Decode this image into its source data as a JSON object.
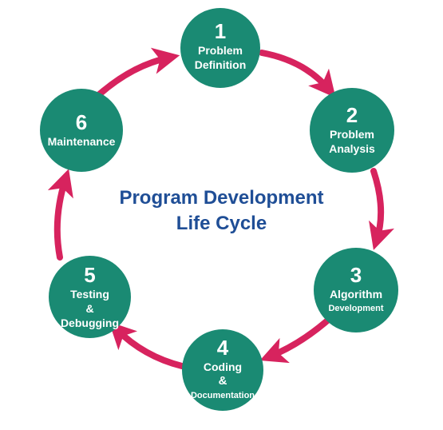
{
  "diagram": {
    "title_line1": "Program Development",
    "title_line2": "Life Cycle",
    "colors": {
      "node": "#1a8a73",
      "arrow": "#d7235e",
      "title": "#1f4e96"
    },
    "steps": [
      {
        "number": "1",
        "line1": "Problem",
        "line2": "Definition",
        "line3": ""
      },
      {
        "number": "2",
        "line1": "Problem",
        "line2": "Analysis",
        "line3": ""
      },
      {
        "number": "3",
        "line1": "Algorithm",
        "line2": "Development",
        "line3": ""
      },
      {
        "number": "4",
        "line1": "Coding",
        "line2": "&",
        "line3": "Documentation"
      },
      {
        "number": "5",
        "line1": "Testing",
        "line2": "&",
        "line3": "Debugging"
      },
      {
        "number": "6",
        "line1": "Maintenance",
        "line2": "",
        "line3": ""
      }
    ]
  }
}
